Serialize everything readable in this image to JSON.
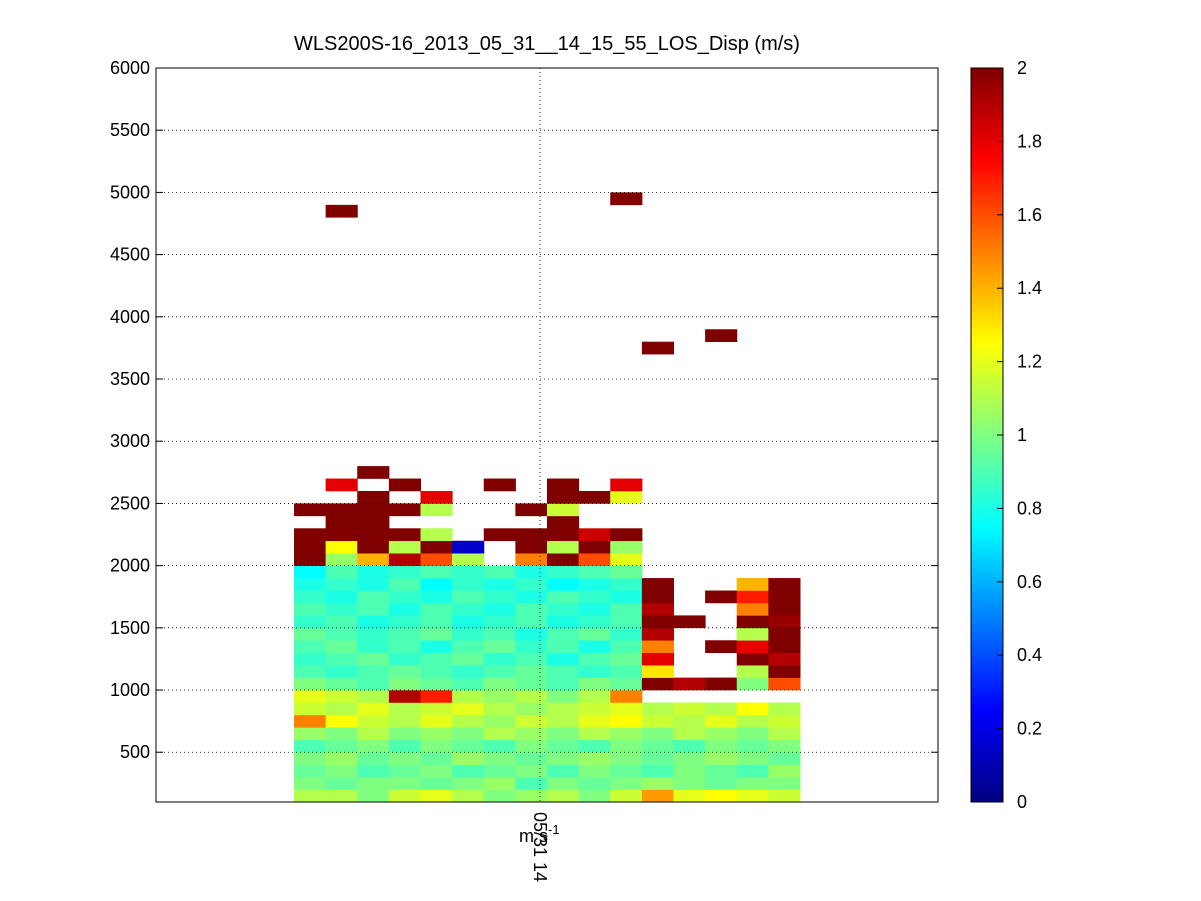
{
  "chart_data": {
    "type": "heatmap",
    "title": "WLS200S-16_2013_05_31__14_15_55_LOS_Disp (m/s)",
    "x_tick_label": "05/31 14",
    "units": {
      "base": "m s",
      "exponent": "-1"
    },
    "ylim": [
      100,
      6000
    ],
    "yticks": [
      500,
      1000,
      1500,
      2000,
      2500,
      3000,
      3500,
      4000,
      4500,
      5000,
      5500,
      6000
    ],
    "grid": true,
    "colormap": "jet",
    "clim": [
      0,
      2
    ],
    "cticks": [
      0,
      0.2,
      0.4,
      0.6,
      0.8,
      1,
      1.2,
      1.4,
      1.6,
      1.8,
      2
    ],
    "y": [
      150,
      250,
      350,
      450,
      550,
      650,
      750,
      850,
      950,
      1050,
      1150,
      1250,
      1350,
      1450,
      1550,
      1650,
      1750,
      1850,
      1950,
      2050,
      2150,
      2250,
      2350,
      2450,
      2550,
      2650,
      2750,
      3750,
      3850,
      4850,
      4950
    ],
    "z": [
      [
        1.1,
        1.1,
        1.0,
        1.15,
        1.2,
        1.1,
        1.0,
        1.05,
        1.1,
        1.0,
        1.15,
        1.45,
        1.2,
        1.25,
        1.2,
        1.15
      ],
      [
        1.0,
        0.95,
        1.0,
        1.0,
        0.95,
        1.0,
        1.05,
        0.9,
        1.0,
        0.95,
        1.0,
        1.05,
        1.0,
        0.95,
        1.0,
        1.0
      ],
      [
        0.95,
        1.0,
        0.9,
        0.95,
        1.0,
        0.9,
        0.95,
        1.0,
        0.9,
        1.0,
        0.95,
        0.9,
        1.0,
        0.95,
        0.9,
        1.05
      ],
      [
        1.0,
        1.05,
        0.95,
        1.0,
        0.95,
        1.05,
        1.0,
        0.95,
        1.0,
        1.05,
        1.0,
        0.95,
        1.0,
        1.05,
        1.0,
        0.95
      ],
      [
        0.9,
        0.95,
        1.0,
        0.9,
        1.0,
        0.95,
        0.9,
        1.0,
        0.95,
        0.9,
        1.0,
        0.95,
        0.9,
        1.0,
        0.95,
        1.0
      ],
      [
        1.05,
        1.0,
        1.1,
        1.0,
        1.05,
        1.0,
        1.1,
        1.05,
        1.0,
        1.1,
        1.05,
        1.0,
        1.1,
        1.05,
        1.0,
        1.1
      ],
      [
        1.5,
        1.25,
        1.15,
        1.1,
        1.2,
        1.1,
        1.05,
        1.15,
        1.1,
        1.2,
        1.25,
        1.15,
        1.1,
        1.2,
        1.1,
        1.15
      ],
      [
        1.15,
        1.1,
        1.2,
        1.1,
        1.15,
        1.2,
        1.1,
        1.05,
        1.1,
        1.15,
        1.2,
        1.1,
        1.15,
        1.1,
        1.25,
        1.1
      ],
      [
        1.2,
        1.15,
        1.1,
        1.9,
        1.7,
        1.1,
        1.05,
        1.1,
        1.0,
        1.1,
        1.5,
        null,
        null,
        null,
        null,
        null
      ],
      [
        1.0,
        0.95,
        0.9,
        1.0,
        0.95,
        0.9,
        1.0,
        0.95,
        0.9,
        1.0,
        0.95,
        2,
        1.9,
        2,
        1.0,
        1.6
      ],
      [
        0.9,
        0.85,
        0.9,
        0.95,
        0.9,
        0.85,
        0.9,
        0.95,
        0.9,
        0.85,
        0.9,
        1.3,
        null,
        null,
        1.1,
        2
      ],
      [
        0.85,
        0.9,
        0.95,
        0.85,
        0.9,
        0.95,
        0.85,
        0.9,
        0.8,
        0.9,
        0.95,
        1.8,
        null,
        null,
        2,
        1.9
      ],
      [
        0.9,
        0.95,
        0.85,
        0.9,
        0.8,
        0.9,
        0.95,
        0.85,
        0.9,
        0.8,
        0.9,
        1.5,
        null,
        2,
        1.8,
        2
      ],
      [
        0.95,
        0.9,
        0.85,
        0.9,
        0.95,
        0.85,
        0.9,
        0.8,
        0.9,
        0.95,
        0.85,
        1.9,
        null,
        null,
        1.1,
        2
      ],
      [
        0.85,
        0.9,
        0.8,
        0.85,
        0.9,
        0.8,
        0.85,
        0.9,
        0.8,
        0.85,
        0.9,
        2,
        2,
        null,
        2,
        1.95
      ],
      [
        0.9,
        0.85,
        0.9,
        0.8,
        0.9,
        0.85,
        0.8,
        0.9,
        0.85,
        0.8,
        0.9,
        1.9,
        null,
        null,
        1.5,
        2
      ],
      [
        0.85,
        0.8,
        0.9,
        0.85,
        0.8,
        0.9,
        0.85,
        0.8,
        0.9,
        0.85,
        0.8,
        2,
        null,
        2,
        1.7,
        2
      ],
      [
        0.8,
        0.85,
        0.8,
        0.9,
        0.75,
        0.85,
        0.8,
        0.85,
        0.75,
        0.8,
        0.85,
        2,
        null,
        null,
        1.4,
        2
      ],
      [
        0.75,
        0.9,
        0.8,
        0.85,
        0.9,
        0.85,
        0.9,
        0.8,
        0.85,
        0.9,
        0.95,
        null,
        null,
        null,
        null,
        null
      ],
      [
        2,
        1.05,
        1.4,
        1.9,
        1.6,
        1.1,
        null,
        1.5,
        2,
        1.6,
        1.2,
        null,
        null,
        null,
        null,
        null
      ],
      [
        2,
        1.25,
        2,
        1.1,
        2,
        0.15,
        null,
        2,
        1.1,
        2,
        1.05,
        null,
        null,
        null,
        null,
        null
      ],
      [
        2,
        2,
        2,
        2,
        1.1,
        null,
        2,
        2,
        2,
        1.85,
        2,
        null,
        null,
        null,
        null,
        null
      ],
      [
        null,
        2,
        2,
        null,
        null,
        null,
        null,
        null,
        2,
        null,
        null,
        null,
        null,
        null,
        null,
        null
      ],
      [
        2,
        2,
        2,
        2,
        1.1,
        null,
        null,
        2,
        1.15,
        null,
        null,
        null,
        null,
        null,
        null,
        null
      ],
      [
        null,
        null,
        2,
        null,
        1.8,
        null,
        null,
        null,
        2,
        2,
        1.2,
        null,
        null,
        null,
        null,
        null
      ],
      [
        null,
        1.8,
        null,
        2,
        null,
        null,
        2,
        null,
        2,
        null,
        1.8,
        null,
        null,
        null,
        null,
        null
      ],
      [
        null,
        null,
        2,
        null,
        null,
        null,
        null,
        null,
        null,
        null,
        null,
        null,
        null,
        null,
        null,
        null
      ],
      [
        null,
        null,
        null,
        null,
        null,
        null,
        null,
        null,
        null,
        null,
        null,
        2,
        null,
        null,
        null,
        null
      ],
      [
        null,
        null,
        null,
        null,
        null,
        null,
        null,
        null,
        null,
        null,
        null,
        null,
        null,
        2,
        null,
        null
      ],
      [
        null,
        2,
        null,
        null,
        null,
        null,
        null,
        null,
        null,
        null,
        null,
        null,
        null,
        null,
        null,
        null
      ],
      [
        null,
        null,
        null,
        null,
        null,
        null,
        null,
        null,
        null,
        null,
        2,
        null,
        null,
        null,
        null,
        null
      ]
    ]
  }
}
